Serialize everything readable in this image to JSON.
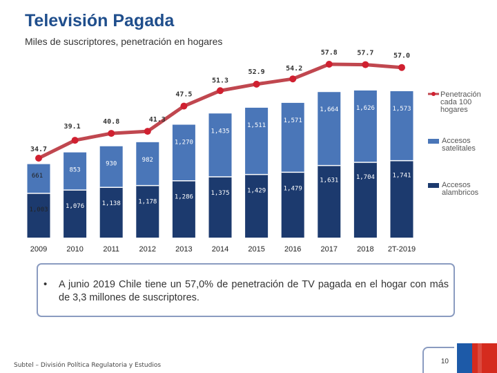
{
  "header": {
    "title": "Televisión Pagada",
    "subtitle": "Miles de suscriptores, penetración en hogares"
  },
  "chart_data": {
    "type": "bar",
    "stacked": true,
    "title": "Televisión Pagada",
    "subtitle": "Miles de suscriptores, penetración en hogares",
    "categories": [
      "2009",
      "2010",
      "2011",
      "2012",
      "2013",
      "2014",
      "2015",
      "2016",
      "2017",
      "2018",
      "2T-2019"
    ],
    "series": [
      {
        "name": "Accesos alambricos",
        "values": [
          1003,
          1076,
          1138,
          1178,
          1286,
          1375,
          1429,
          1479,
          1631,
          1704,
          1741
        ],
        "labels": [
          "1,003",
          "1,076",
          "1,138",
          "1,178",
          "1,286",
          "1,375",
          "1,429",
          "1,479",
          "1,631",
          "1,704",
          "1,741"
        ],
        "color": "#1c3a6e"
      },
      {
        "name": "Accesos satelitales",
        "values": [
          661,
          853,
          930,
          982,
          1270,
          1435,
          1511,
          1571,
          1664,
          1626,
          1573
        ],
        "labels": [
          "661",
          "853",
          "930",
          "982",
          "1,270",
          "1,435",
          "1,511",
          "1,571",
          "1,664",
          "1,626",
          "1,573"
        ],
        "color": "#4a76b8"
      }
    ],
    "line_series": {
      "name": "Penetración cada 100 hogares",
      "values": [
        34.7,
        39.1,
        40.8,
        41.3,
        47.5,
        51.3,
        52.9,
        54.2,
        57.8,
        57.7,
        57.0
      ],
      "labels": [
        "34.7",
        "39.1",
        "40.8",
        "41.3",
        "47.5",
        "51.3",
        "52.9",
        "54.2",
        "57.8",
        "57.7",
        "57.0"
      ],
      "color": "#c0474f",
      "marker_color": "#d02030"
    },
    "legend": [
      {
        "label": "Penetración cada 100 hogares",
        "kind": "line"
      },
      {
        "label": "Accesos satelitales",
        "kind": "bar"
      },
      {
        "label": "Accesos alambricos",
        "kind": "bar"
      }
    ],
    "legend_position": "right",
    "ylim": [
      0,
      3500
    ],
    "line_ylim": [
      0,
      60
    ],
    "grid": false
  },
  "note": {
    "bullet": "•",
    "text": "A junio 2019 Chile tiene un 57,0% de penetración de TV pagada en el hogar con más de 3,3 millones de suscriptores."
  },
  "footer": {
    "source": "Subtel – División Política Regulatoria y Estudios",
    "page_number": "10"
  },
  "colors": {
    "title": "#1f4e8c",
    "flag_blue": "#1d5aa8",
    "flag_red": "#d52b1e"
  }
}
